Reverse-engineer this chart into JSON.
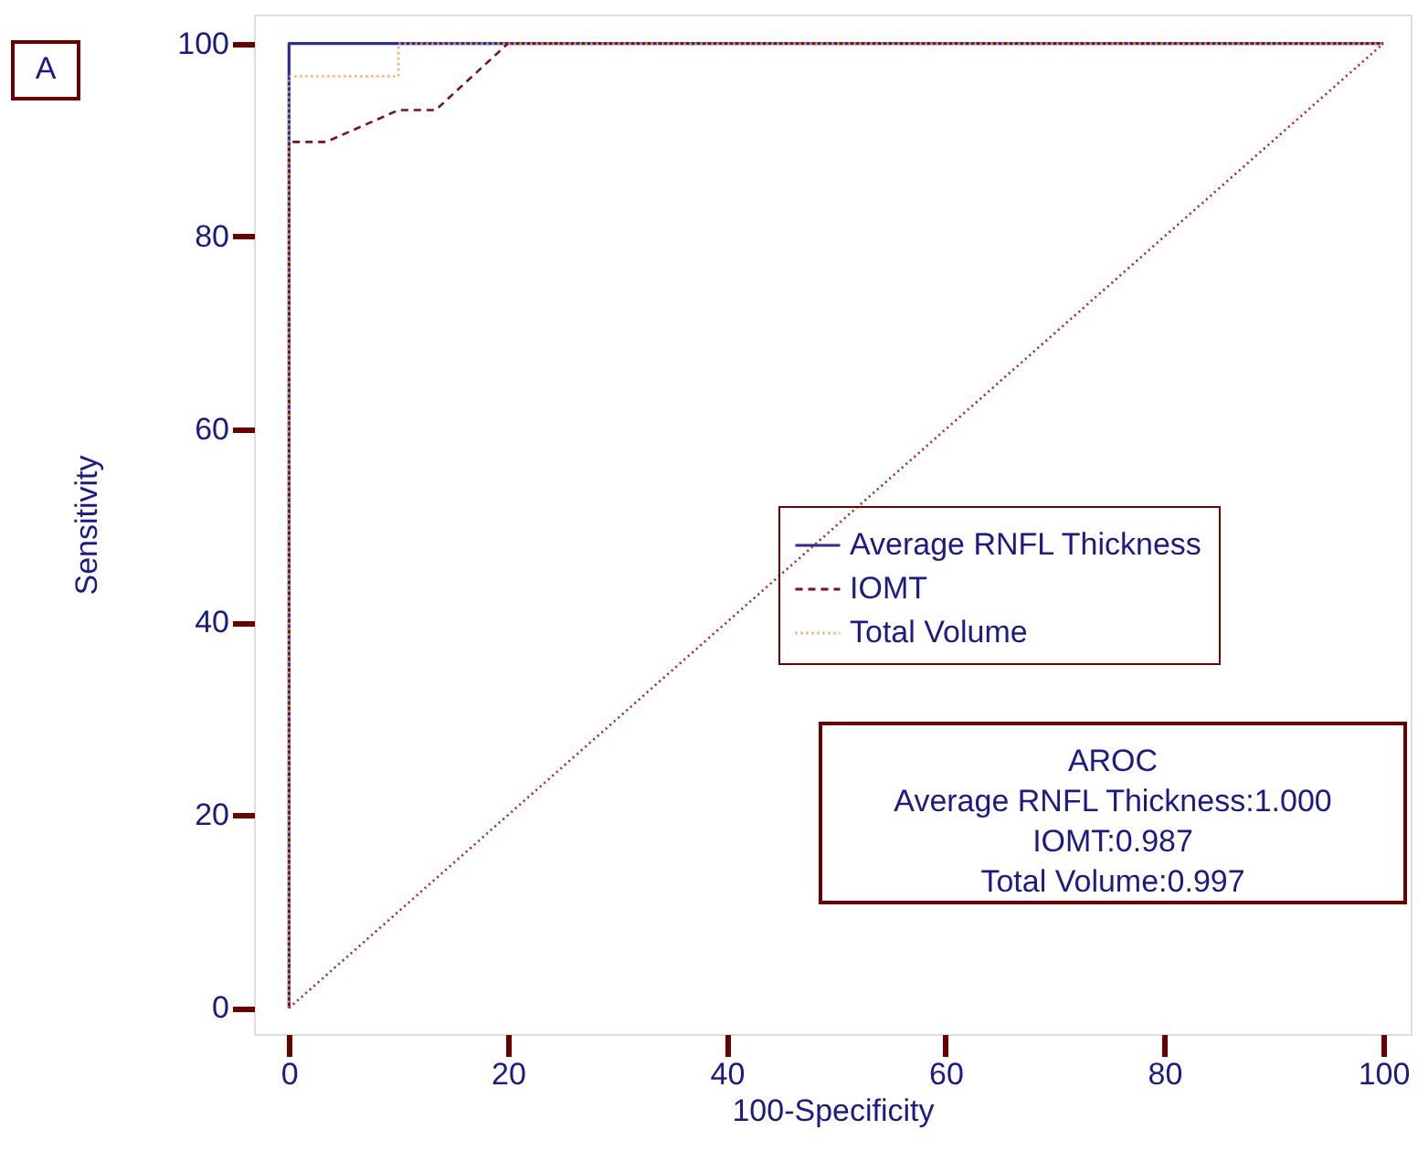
{
  "chart_data": {
    "type": "line",
    "xlabel": "100-Specificity",
    "ylabel": "Sensitivity",
    "xlim": [
      -3.2,
      102.5
    ],
    "ylim": [
      -2.7,
      103
    ],
    "xticks": [
      0,
      20,
      40,
      60,
      80,
      100
    ],
    "yticks": [
      0,
      20,
      40,
      60,
      80,
      100
    ],
    "grid": false,
    "legend": "right",
    "marker": "none",
    "series": [
      {
        "name": "Average RNFL Thickness",
        "color": "#2b2b9b",
        "line_style": "solid",
        "x": [
          0,
          0,
          100
        ],
        "values": [
          0,
          100,
          100
        ]
      },
      {
        "name": "IOMT",
        "color": "#7f1010",
        "line_style": "dashed",
        "x": [
          0,
          0,
          3.4,
          10,
          13.4,
          20,
          100
        ],
        "values": [
          0,
          89.8,
          89.8,
          93.1,
          93.1,
          100,
          100
        ]
      },
      {
        "name": "Total Volume",
        "color": "#f5a050",
        "line_style": "dotted",
        "x": [
          0,
          0,
          10,
          10,
          100
        ],
        "values": [
          0,
          96.6,
          96.6,
          100,
          100
        ]
      },
      {
        "color": "#b02020",
        "line_style": "dotted",
        "x": [
          0,
          100
        ],
        "values": [
          0,
          100
        ]
      }
    ],
    "annotations": [
      "A",
      "AROC",
      "Average RNFL Thickness:1.000",
      "IOMT:0.987",
      "Total Volume:0.997"
    ]
  }
}
